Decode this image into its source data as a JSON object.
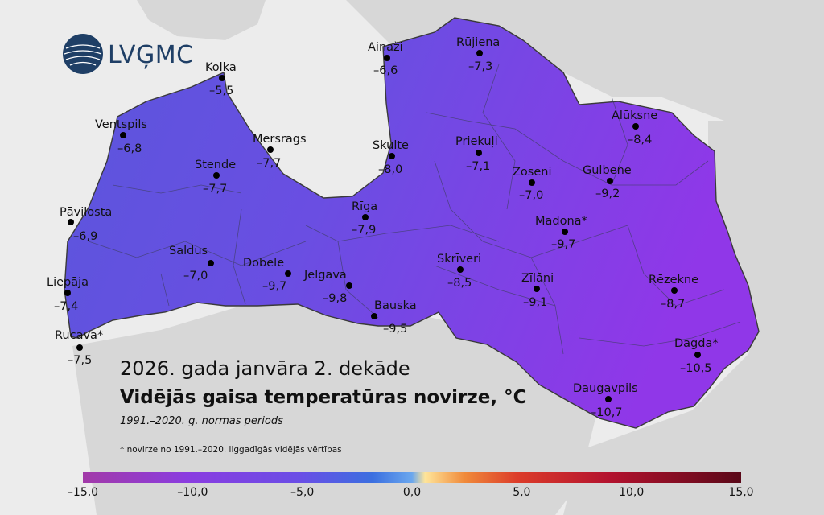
{
  "logo": {
    "text": "LVĢMC"
  },
  "title": {
    "line1": "2026. gada janvāra 2. dekāde",
    "line2": "Vidējās gaisa temperatūras novirze, °C",
    "line3": "1991.–2020. g. normas periods"
  },
  "footnote": "* novirze no 1991.–2020. ilggadīgās vidējās vērtības",
  "colors": {
    "sea": "#ececec",
    "land_outside": "#d7d7d7",
    "latvia_fill_west": "#5f52d9",
    "latvia_fill_east": "#8b3ee6",
    "border": "#3f3f3f"
  },
  "stations": [
    {
      "name": "Kolka",
      "value": "–5,5"
    },
    {
      "name": "Ventspils",
      "value": "–6,8"
    },
    {
      "name": "Mērsrags",
      "value": "–7,7"
    },
    {
      "name": "Stende",
      "value": "–7,7"
    },
    {
      "name": "Pāvilosta",
      "value": "–6,9"
    },
    {
      "name": "Saldus",
      "value": "–7,0"
    },
    {
      "name": "Dobele",
      "value": "–9,7"
    },
    {
      "name": "Jelgava",
      "value": "–9,8"
    },
    {
      "name": "Liepāja",
      "value": "–7,4"
    },
    {
      "name": "Rucava*",
      "value": "–7,5"
    },
    {
      "name": "Bauska",
      "value": "–9,5"
    },
    {
      "name": "Ainaži",
      "value": "–6,6"
    },
    {
      "name": "Rūjiena",
      "value": "–7,3"
    },
    {
      "name": "Skulte",
      "value": "–8,0"
    },
    {
      "name": "Rīga",
      "value": "–7,9"
    },
    {
      "name": "Priekuļi",
      "value": "–7,1"
    },
    {
      "name": "Zosēni",
      "value": "–7,0"
    },
    {
      "name": "Alūksne",
      "value": "–8,4"
    },
    {
      "name": "Gulbene",
      "value": "–9,2"
    },
    {
      "name": "Madona*",
      "value": "–9,7"
    },
    {
      "name": "Skrīveri",
      "value": "–8,5"
    },
    {
      "name": "Zīlāni",
      "value": "–9,1"
    },
    {
      "name": "Rēzekne",
      "value": "–8,7"
    },
    {
      "name": "Dagda*",
      "value": "–10,5"
    },
    {
      "name": "Daugavpils",
      "value": "–10,7"
    }
  ],
  "colorbar": {
    "min": -15,
    "max": 15,
    "ticks": [
      "–15,0",
      "–10,0",
      "–5,0",
      "0,0",
      "5,0",
      "10,0",
      "15,0"
    ]
  }
}
